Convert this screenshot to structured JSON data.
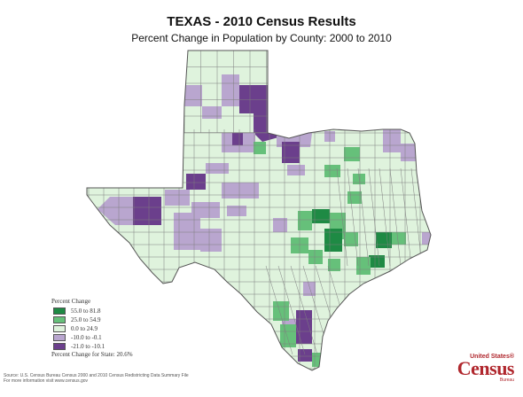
{
  "title": "TEXAS - 2010 Census Results",
  "subtitle": "Percent Change in Population by County:  2000 to 2010",
  "colors": {
    "dark_green": "#1e8a44",
    "medium_green": "#66c07a",
    "light_green": "#dff3dd",
    "light_purple": "#b9a6cf",
    "dark_purple": "#6b3f8c",
    "border": "#7f7f7f"
  },
  "legend": {
    "title": "Percent Change",
    "items": [
      {
        "label": "55.0 to 81.8",
        "color_key": "dark_green"
      },
      {
        "label": "25.0 to 54.9",
        "color_key": "medium_green"
      },
      {
        "label": "0.0 to 24.9",
        "color_key": "light_green"
      },
      {
        "label": "-10.0 to -0.1",
        "color_key": "light_purple"
      },
      {
        "label": "-21.0 to -10.1",
        "color_key": "dark_purple"
      }
    ],
    "state_change": "Percent Change for State:  20.6%"
  },
  "source": {
    "line1": "Source: U.S. Census Bureau Census 2000 and 2010 Census Redistricting Data Summary File",
    "line2": "For more information visit www.census.gov"
  },
  "logo": {
    "top": "United States®",
    "main": "Census",
    "sub": "Bureau"
  }
}
